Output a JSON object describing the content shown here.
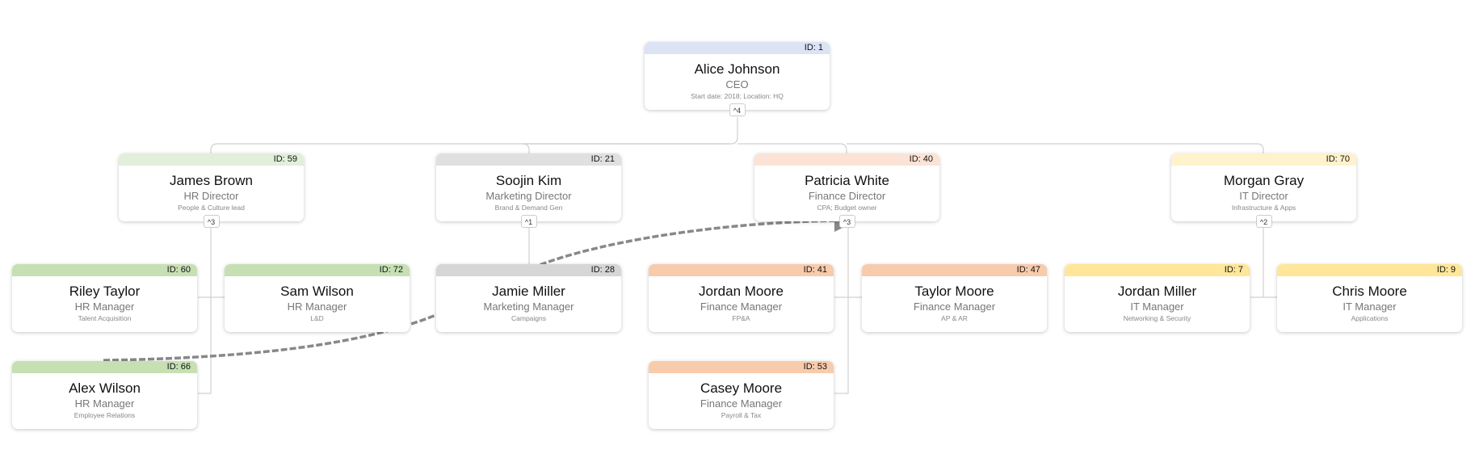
{
  "nodes": [
    {
      "id": "ID: 1",
      "name": "Alice Johnson",
      "title": "CEO",
      "note": "Start date: 2018; Location: HQ",
      "children": "4",
      "color": "#dbe3f4"
    },
    {
      "id": "ID: 59",
      "name": "James Brown",
      "title": "HR Director",
      "note": "People & Culture lead",
      "children": "3",
      "color": "#e2efda"
    },
    {
      "id": "ID: 21",
      "name": "Soojin Kim",
      "title": "Marketing Director",
      "note": "Brand & Demand Gen",
      "children": "1",
      "color": "#e0e0e0"
    },
    {
      "id": "ID: 40",
      "name": "Patricia White",
      "title": "Finance Director",
      "note": "CPA; Budget owner",
      "children": "3",
      "color": "#fbe3d6"
    },
    {
      "id": "ID: 70",
      "name": "Morgan Gray",
      "title": "IT Director",
      "note": "Infrastructure & Apps",
      "children": "2",
      "color": "#fff2cc"
    },
    {
      "id": "ID: 60",
      "name": "Riley Taylor",
      "title": "HR Manager",
      "note": "Talent Acquisition",
      "color": "#c6e0b4"
    },
    {
      "id": "ID: 72",
      "name": "Sam Wilson",
      "title": "HR Manager",
      "note": "L&D",
      "color": "#c6e0b4"
    },
    {
      "id": "ID: 66",
      "name": "Alex Wilson",
      "title": "HR Manager",
      "note": "Employee Relations",
      "color": "#c6e0b4"
    },
    {
      "id": "ID: 28",
      "name": "Jamie Miller",
      "title": "Marketing Manager",
      "note": "Campaigns",
      "color": "#d6d6d6"
    },
    {
      "id": "ID: 41",
      "name": "Jordan Moore",
      "title": "Finance Manager",
      "note": "FP&A",
      "color": "#f8cbad"
    },
    {
      "id": "ID: 47",
      "name": "Taylor Moore",
      "title": "Finance Manager",
      "note": "AP & AR",
      "color": "#f8cbad"
    },
    {
      "id": "ID: 53",
      "name": "Casey Moore",
      "title": "Finance Manager",
      "note": "Payroll & Tax",
      "color": "#f8cbad"
    },
    {
      "id": "ID: 7",
      "name": "Jordan Miller",
      "title": "IT Manager",
      "note": "Networking & Security",
      "color": "#ffe699"
    },
    {
      "id": "ID: 9",
      "name": "Chris Moore",
      "title": "IT Manager",
      "note": "Applications",
      "color": "#ffe699"
    }
  ]
}
